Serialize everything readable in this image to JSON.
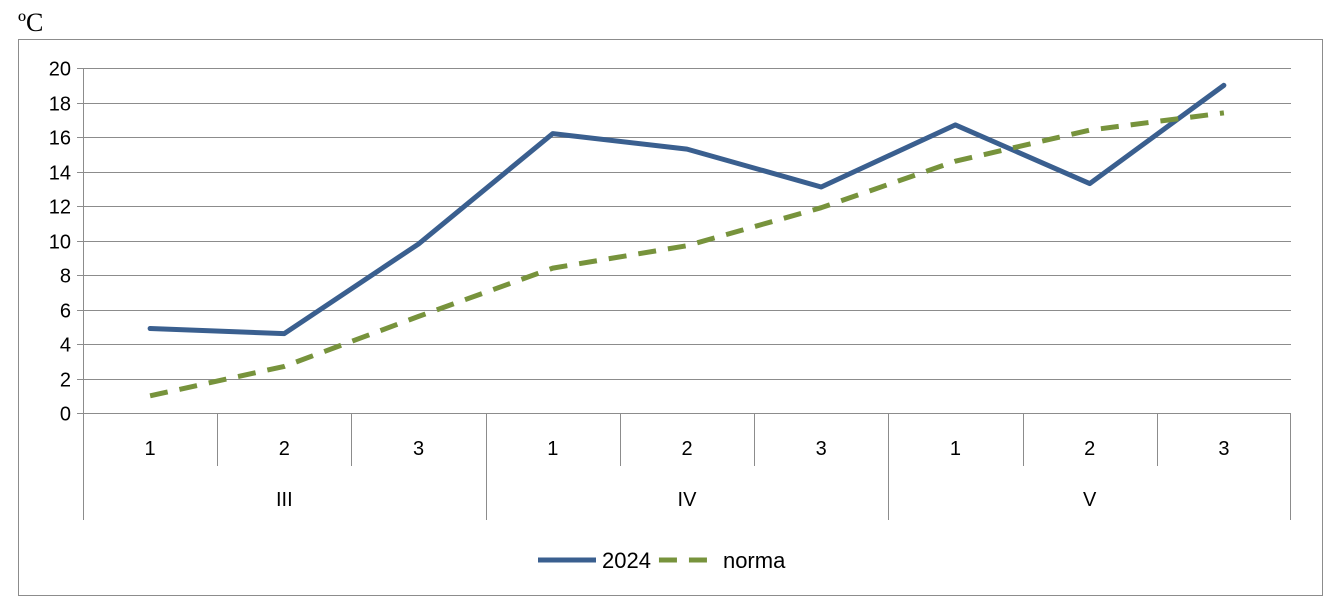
{
  "unit_label": "ºC",
  "chart_data": {
    "type": "line",
    "title": "",
    "xlabel": "",
    "ylabel": "",
    "ylim": [
      0,
      20
    ],
    "yticks": [
      0,
      2,
      4,
      6,
      8,
      10,
      12,
      14,
      16,
      18,
      20
    ],
    "grid": true,
    "legend_position": "bottom",
    "categories": [
      "1",
      "2",
      "3",
      "1",
      "2",
      "3",
      "1",
      "2",
      "3"
    ],
    "groups": [
      {
        "label": "III",
        "span": 3
      },
      {
        "label": "IV",
        "span": 3
      },
      {
        "label": "V",
        "span": 3
      }
    ],
    "series": [
      {
        "name": "2024",
        "values": [
          4.9,
          4.6,
          9.8,
          16.2,
          15.3,
          13.1,
          16.7,
          13.3,
          19.0
        ],
        "color": "#3a5f8f",
        "style": "solid"
      },
      {
        "name": "norma",
        "values": [
          1.0,
          2.7,
          5.6,
          8.4,
          9.7,
          11.9,
          14.6,
          16.4,
          17.4
        ],
        "color": "#77933c",
        "style": "dashed"
      }
    ]
  }
}
